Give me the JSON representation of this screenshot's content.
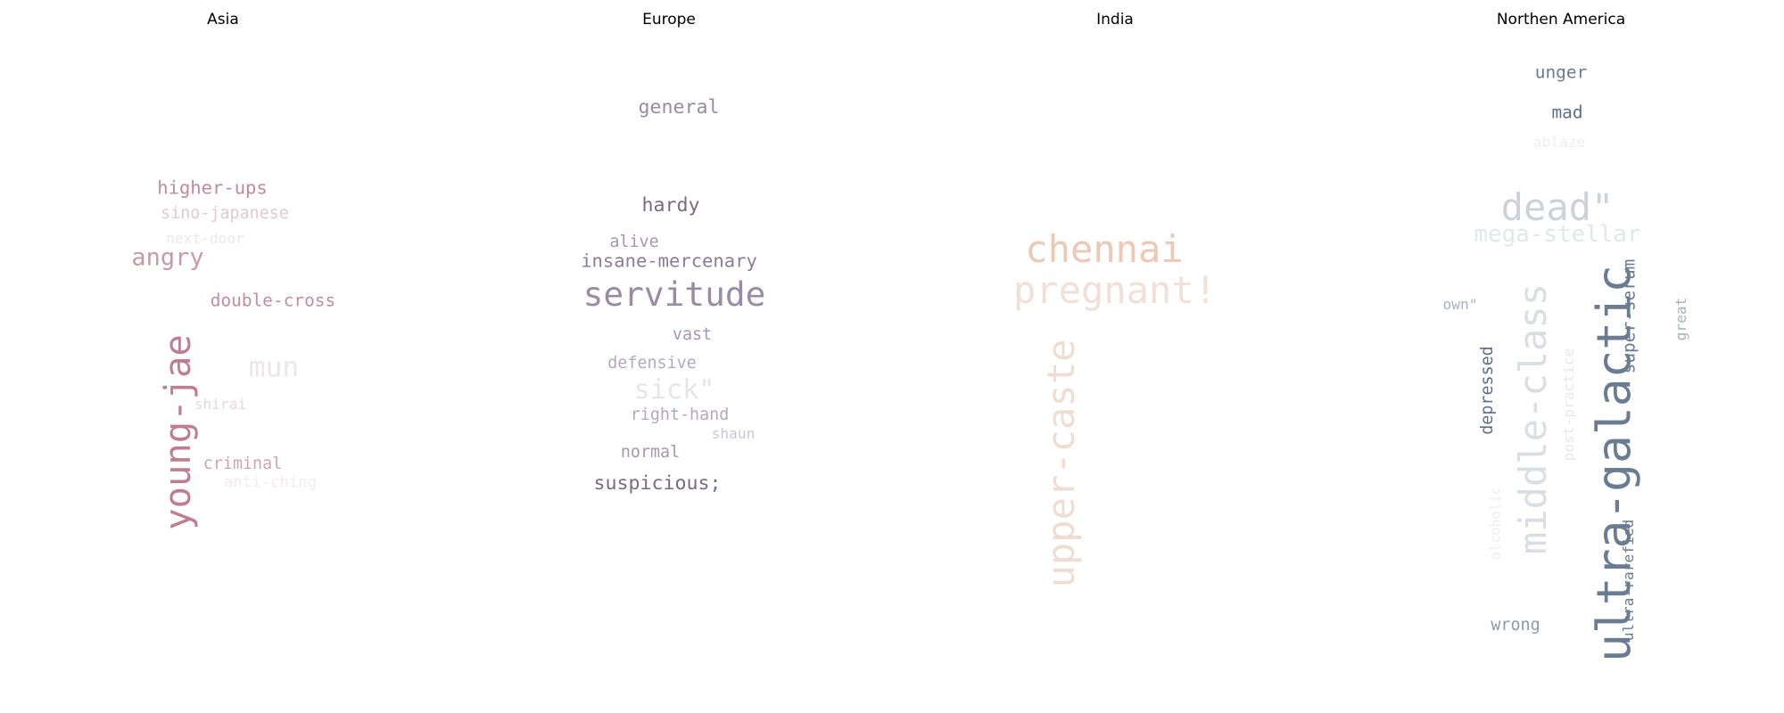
{
  "chart_data": {
    "type": "wordcloud",
    "panels": [
      {
        "title": "Asia",
        "words": [
          {
            "text": "higher-ups",
            "weight": 0.38,
            "color": "#c28a9a"
          },
          {
            "text": "sino-japanese",
            "weight": 0.34,
            "color": "#e2c9d0"
          },
          {
            "text": "next-door",
            "weight": 0.3,
            "color": "#f0e6e8"
          },
          {
            "text": "angry",
            "weight": 0.5,
            "color": "#c89aa6"
          },
          {
            "text": "double-cross",
            "weight": 0.36,
            "color": "#c48c9c"
          },
          {
            "text": "mun",
            "weight": 0.58,
            "color": "#ede6e8"
          },
          {
            "text": "young-jae",
            "weight": 0.75,
            "color": "#c07d92"
          },
          {
            "text": "shirai",
            "weight": 0.3,
            "color": "#ead7dc"
          },
          {
            "text": "criminal",
            "weight": 0.34,
            "color": "#d0a4b0"
          },
          {
            "text": "anti-ching",
            "weight": 0.32,
            "color": "#f2ecee"
          }
        ]
      },
      {
        "title": "Europe",
        "words": [
          {
            "text": "general",
            "weight": 0.4,
            "color": "#9a8aa6"
          },
          {
            "text": "hardy",
            "weight": 0.4,
            "color": "#7a6a84"
          },
          {
            "text": "alive",
            "weight": 0.34,
            "color": "#a696b0"
          },
          {
            "text": "insane-mercenary",
            "weight": 0.38,
            "color": "#8c7c98"
          },
          {
            "text": "servitude",
            "weight": 0.7,
            "color": "#9a8aa6"
          },
          {
            "text": "vast",
            "weight": 0.34,
            "color": "#a696b0"
          },
          {
            "text": "defensive",
            "weight": 0.34,
            "color": "#b4a8bc"
          },
          {
            "text": "sick\"",
            "weight": 0.56,
            "color": "#e8e4ea"
          },
          {
            "text": "right-hand",
            "weight": 0.34,
            "color": "#b4a8bc"
          },
          {
            "text": "shaun",
            "weight": 0.3,
            "color": "#cfc6d4"
          },
          {
            "text": "normal",
            "weight": 0.34,
            "color": "#a696b0"
          },
          {
            "text": "suspicious;",
            "weight": 0.4,
            "color": "#7a6a84"
          }
        ]
      },
      {
        "title": "India",
        "words": [
          {
            "text": "chennai",
            "weight": 0.78,
            "color": "#ecc9b6"
          },
          {
            "text": "pregnant!",
            "weight": 0.78,
            "color": "#f2e0d8"
          },
          {
            "text": "upper-caste",
            "weight": 0.78,
            "color": "#f0ddd2"
          }
        ]
      },
      {
        "title": "Northen America",
        "words": [
          {
            "text": "unger",
            "weight": 0.36,
            "color": "#6a7c92"
          },
          {
            "text": "mad",
            "weight": 0.36,
            "color": "#5e7088"
          },
          {
            "text": "ablaze",
            "weight": 0.3,
            "color": "#eceef1"
          },
          {
            "text": "dead\"",
            "weight": 0.78,
            "color": "#cdd2d8"
          },
          {
            "text": "mega-stellar",
            "weight": 0.48,
            "color": "#e3e6ea"
          },
          {
            "text": "own\"",
            "weight": 0.3,
            "color": "#a8b2be"
          },
          {
            "text": "middle-class",
            "weight": 0.78,
            "color": "#dadde2"
          },
          {
            "text": "ultra-galactic",
            "weight": 0.98,
            "color": "#6a7c92"
          },
          {
            "text": "super-serum",
            "weight": 0.36,
            "color": "#6a7c92"
          },
          {
            "text": "great",
            "weight": 0.3,
            "color": "#a8b2be"
          },
          {
            "text": "depressed",
            "weight": 0.34,
            "color": "#5e7088"
          },
          {
            "text": "post-practice",
            "weight": 0.3,
            "color": "#e6e9ec"
          },
          {
            "text": "alcoholic",
            "weight": 0.28,
            "color": "#eceef1"
          },
          {
            "text": "ultra-rarefied",
            "weight": 0.3,
            "color": "#6a7c92"
          },
          {
            "text": "wrong",
            "weight": 0.34,
            "color": "#8e9aa8"
          }
        ]
      }
    ]
  }
}
